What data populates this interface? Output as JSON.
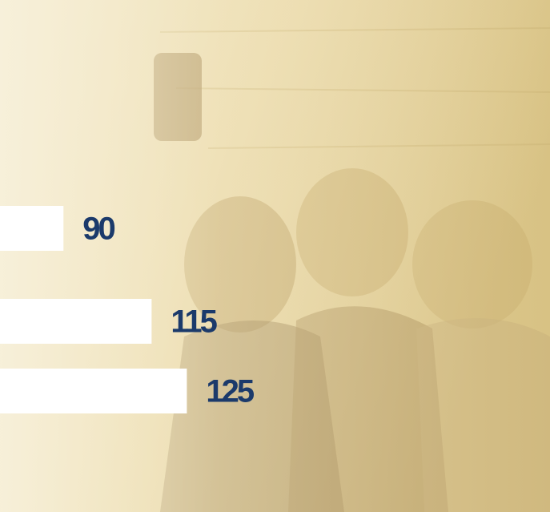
{
  "chart_data": {
    "type": "bar",
    "orientation": "horizontal",
    "categories": [
      null,
      null,
      null
    ],
    "values": [
      90,
      115,
      125
    ],
    "color": "#ffffff",
    "label_color": "#1b3a6b",
    "xlim": [
      72,
      228
    ]
  }
}
